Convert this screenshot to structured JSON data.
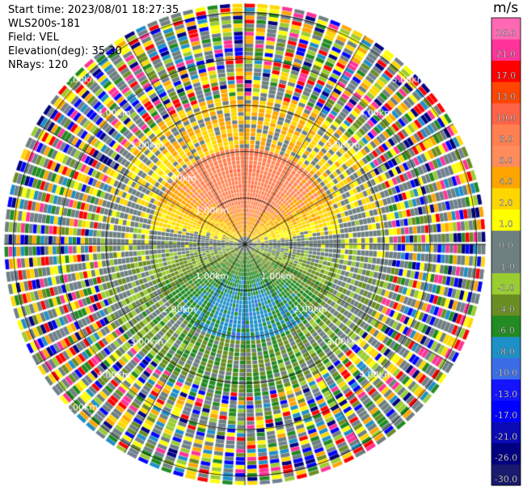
{
  "header": {
    "start_time": "Start time: 2023/08/01 18:27:35",
    "instrument": "WLS200s-181",
    "field": "Field: VEL",
    "elevation": "Elevation(deg): 35.30",
    "nrays": "NRays: 120"
  },
  "colorbar": {
    "unit": "m/s",
    "bounds": [
      -30,
      -26,
      -21,
      -17,
      -13,
      -10,
      -8,
      -6,
      -4,
      -2,
      -1,
      0,
      1,
      2,
      4,
      6,
      8,
      10,
      13,
      17,
      21,
      26,
      30
    ],
    "labels": [
      "-30.0",
      "-26.0",
      "-21.0",
      "-17.0",
      "-13.0",
      "-10.0",
      "-8.0",
      "-6.0",
      "-4.0",
      "-2.0",
      "-1.0",
      "0.0",
      "1.0",
      "2.0",
      "4.0",
      "6.0",
      "8.0",
      "10.0",
      "13.0",
      "17.0",
      "21.0",
      "26.0"
    ],
    "colors": [
      "#1a1a6e",
      "#000080",
      "#0b0bb5",
      "#0000ff",
      "#1414ff",
      "#3b6ee6",
      "#1e90c8",
      "#228b22",
      "#6b8e23",
      "#9acd32",
      "#6e7f80",
      "#6e7f80",
      "#ffff00",
      "#ffd700",
      "#ffa500",
      "#ff8c5a",
      "#ff7f50",
      "#ff6347",
      "#ff4500",
      "#ff0000",
      "#ff3399",
      "#ff69b4"
    ]
  },
  "chart_data": {
    "type": "ppi",
    "title": "",
    "field": "VEL",
    "nrays": 120,
    "rings_km": [
      1,
      2,
      3,
      4,
      5
    ],
    "range_km": 5.2,
    "spokes_deg": [
      0,
      30,
      60,
      90,
      120,
      150,
      180,
      210,
      240,
      270,
      300,
      330
    ],
    "ring_labels": [
      {
        "text": "1.00km",
        "range_km": 1,
        "azimuth_deg": 315
      },
      {
        "text": "1.00km",
        "range_km": 1,
        "azimuth_deg": 225
      },
      {
        "text": "1.00km",
        "range_km": 1,
        "azimuth_deg": 135
      },
      {
        "text": "2.00km",
        "range_km": 2,
        "azimuth_deg": 315
      },
      {
        "text": "2.00km",
        "range_km": 2,
        "azimuth_deg": 225
      },
      {
        "text": "2.00km",
        "range_km": 2,
        "azimuth_deg": 135
      },
      {
        "text": "3.00km",
        "range_km": 3,
        "azimuth_deg": 315
      },
      {
        "text": "3.00km",
        "range_km": 3,
        "azimuth_deg": 225
      },
      {
        "text": "3.00km",
        "range_km": 3,
        "azimuth_deg": 45
      },
      {
        "text": "3.00km",
        "range_km": 3,
        "azimuth_deg": 135
      },
      {
        "text": "4.00km",
        "range_km": 4,
        "azimuth_deg": 315
      },
      {
        "text": "4.00km",
        "range_km": 4,
        "azimuth_deg": 225
      },
      {
        "text": "4.00km",
        "range_km": 4,
        "azimuth_deg": 45
      },
      {
        "text": "4.00km",
        "range_km": 4,
        "azimuth_deg": 135
      },
      {
        "text": "5.00km",
        "range_km": 5,
        "azimuth_deg": 315
      },
      {
        "text": "5.00km",
        "range_km": 5,
        "azimuth_deg": 225
      },
      {
        "text": "5.00km",
        "range_km": 5,
        "azimuth_deg": 45
      }
    ],
    "velocity_pattern": {
      "description_values_m_s": "north sector ~+2 to +10, south sector ~-2 to -8, far ranges noisy",
      "north_peak": 9,
      "south_peak": -7
    }
  }
}
